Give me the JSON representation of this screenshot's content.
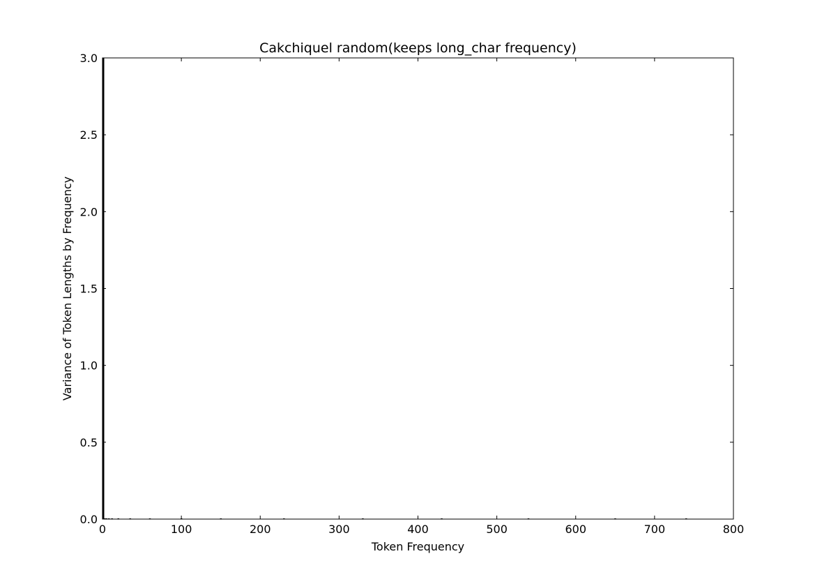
{
  "chart_data": {
    "type": "bar",
    "title": "Cakchiquel random(keeps long_char frequency)",
    "xlabel": "Token Frequency",
    "ylabel": "Variance of Token Lengths by Frequency",
    "xlim": [
      0,
      800
    ],
    "ylim": [
      0,
      3
    ],
    "xticks": [
      0,
      100,
      200,
      300,
      400,
      500,
      600,
      700,
      800
    ],
    "yticks": [
      0.0,
      0.5,
      1.0,
      1.5,
      2.0,
      2.5,
      3.0
    ],
    "xtick_labels": [
      "0",
      "100",
      "200",
      "300",
      "400",
      "500",
      "600",
      "700",
      "800"
    ],
    "ytick_labels": [
      "0.0",
      "0.5",
      "1.0",
      "1.5",
      "2.0",
      "2.5",
      "3.0"
    ],
    "grid": false,
    "bar_color": "#000000",
    "bars": [
      {
        "x": 1,
        "y": 3.0
      },
      {
        "x": 2,
        "y": 0.0
      },
      {
        "x": 3,
        "y": 0.0
      },
      {
        "x": 5,
        "y": 0.0
      },
      {
        "x": 8,
        "y": 0.0
      },
      {
        "x": 12,
        "y": 0.0
      },
      {
        "x": 20,
        "y": 0.0
      },
      {
        "x": 35,
        "y": 0.0
      },
      {
        "x": 60,
        "y": 0.0
      },
      {
        "x": 100,
        "y": 0.0
      },
      {
        "x": 150,
        "y": 0.0
      },
      {
        "x": 230,
        "y": 0.0
      },
      {
        "x": 330,
        "y": 0.0
      },
      {
        "x": 430,
        "y": 0.0
      },
      {
        "x": 540,
        "y": 0.0
      },
      {
        "x": 650,
        "y": 0.0
      },
      {
        "x": 740,
        "y": 0.0
      }
    ]
  }
}
